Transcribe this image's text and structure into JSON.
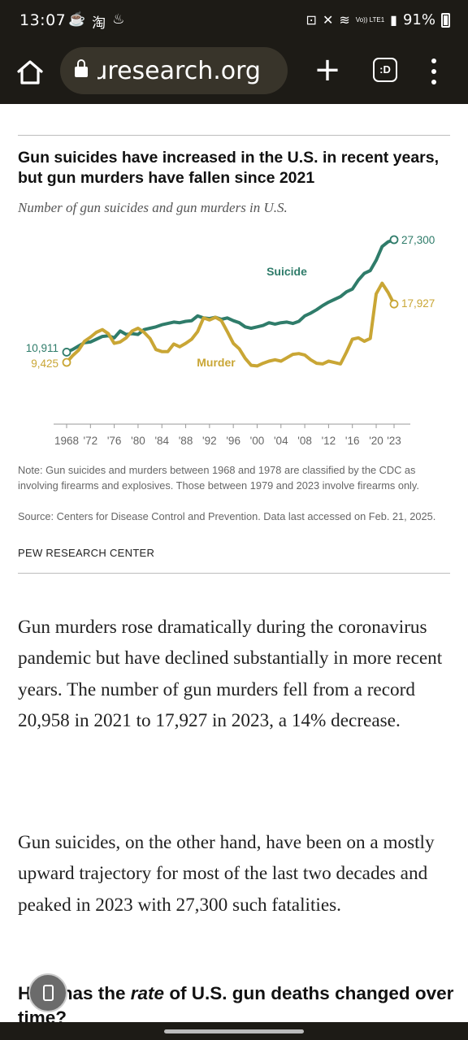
{
  "status_bar": {
    "time": "13:07",
    "left_icons": [
      "tea-cup-icon",
      "taobao-icon",
      "alipay-icon"
    ],
    "right_icons": [
      "nfc-icon",
      "mute-icon",
      "wifi-icon",
      "volte-icon",
      "signal-icon"
    ],
    "lte_label": "Vo)) LTE1",
    "battery": "91%"
  },
  "browser": {
    "url": "ɹresearch.org",
    "plus": "+",
    "tabs_label": ":D"
  },
  "chart": {
    "title": "Gun suicides have increased in the U.S. in recent years, but gun murders have fallen since 2021",
    "subtitle": "Number of gun suicides and gun murders in U.S.",
    "note": "Note: Gun suicides and murders between 1968 and 1978 are classified by the CDC as involving firearms and explosives. Those between 1979 and 2023 involve firearms only.",
    "source": "Source: Centers for Disease Control and Prevention. Data last accessed on Feb. 21, 2025.",
    "brand": "PEW RESEARCH CENTER"
  },
  "chart_data": {
    "type": "line",
    "title": "Gun suicides have increased in the U.S. in recent years, but gun murders have fallen since 2021",
    "subtitle": "Number of gun suicides and gun murders in U.S.",
    "xlabel": "",
    "ylabel": "",
    "x_ticks": [
      "1968",
      "'72",
      "'76",
      "'80",
      "'84",
      "'88",
      "'92",
      "'96",
      "'00",
      "'04",
      "'08",
      "'12",
      "'16",
      "'20",
      "'23"
    ],
    "x_range": [
      1968,
      2023
    ],
    "ylim": [
      0,
      28000
    ],
    "grid": false,
    "series": [
      {
        "name": "Suicide",
        "color": "#2f7c6a",
        "start_label": "10,911",
        "end_label": "27,300",
        "points": [
          [
            1968,
            10911
          ],
          [
            1969,
            11300
          ],
          [
            1970,
            11800
          ],
          [
            1971,
            12300
          ],
          [
            1972,
            12400
          ],
          [
            1973,
            12800
          ],
          [
            1974,
            13200
          ],
          [
            1975,
            13300
          ],
          [
            1976,
            13000
          ],
          [
            1977,
            14000
          ],
          [
            1978,
            13500
          ],
          [
            1979,
            13600
          ],
          [
            1980,
            13500
          ],
          [
            1981,
            14200
          ],
          [
            1982,
            14400
          ],
          [
            1983,
            14600
          ],
          [
            1984,
            14900
          ],
          [
            1985,
            15100
          ],
          [
            1986,
            15300
          ],
          [
            1987,
            15200
          ],
          [
            1988,
            15400
          ],
          [
            1989,
            15500
          ],
          [
            1990,
            16200
          ],
          [
            1991,
            15900
          ],
          [
            1992,
            15800
          ],
          [
            1993,
            16000
          ],
          [
            1994,
            15700
          ],
          [
            1995,
            15900
          ],
          [
            1996,
            15500
          ],
          [
            1997,
            15200
          ],
          [
            1998,
            14600
          ],
          [
            1999,
            14400
          ],
          [
            2000,
            14600
          ],
          [
            2001,
            14800
          ],
          [
            2002,
            15200
          ],
          [
            2003,
            15000
          ],
          [
            2004,
            15200
          ],
          [
            2005,
            15300
          ],
          [
            2006,
            15100
          ],
          [
            2007,
            15400
          ],
          [
            2008,
            16200
          ],
          [
            2009,
            16600
          ],
          [
            2010,
            17100
          ],
          [
            2011,
            17700
          ],
          [
            2012,
            18200
          ],
          [
            2013,
            18600
          ],
          [
            2014,
            19000
          ],
          [
            2015,
            19700
          ],
          [
            2016,
            20100
          ],
          [
            2017,
            21400
          ],
          [
            2018,
            22400
          ],
          [
            2019,
            22800
          ],
          [
            2020,
            24300
          ],
          [
            2021,
            26300
          ],
          [
            2022,
            26993
          ],
          [
            2023,
            27300
          ]
        ]
      },
      {
        "name": "Murder",
        "color": "#c9a635",
        "start_label": "9,425",
        "end_label": "17,927",
        "points": [
          [
            1968,
            9425
          ],
          [
            1969,
            10400
          ],
          [
            1970,
            11200
          ],
          [
            1971,
            12500
          ],
          [
            1972,
            13100
          ],
          [
            1973,
            13800
          ],
          [
            1974,
            14200
          ],
          [
            1975,
            13600
          ],
          [
            1976,
            12200
          ],
          [
            1977,
            12400
          ],
          [
            1978,
            13000
          ],
          [
            1979,
            14000
          ],
          [
            1980,
            14400
          ],
          [
            1981,
            13800
          ],
          [
            1982,
            12900
          ],
          [
            1983,
            11300
          ],
          [
            1984,
            11000
          ],
          [
            1985,
            11000
          ],
          [
            1986,
            12100
          ],
          [
            1987,
            11700
          ],
          [
            1988,
            12200
          ],
          [
            1989,
            12800
          ],
          [
            1990,
            13900
          ],
          [
            1991,
            15900
          ],
          [
            1992,
            15600
          ],
          [
            1993,
            16000
          ],
          [
            1994,
            15500
          ],
          [
            1995,
            13900
          ],
          [
            1996,
            12200
          ],
          [
            1997,
            11400
          ],
          [
            1998,
            10000
          ],
          [
            1999,
            9000
          ],
          [
            2000,
            8900
          ],
          [
            2001,
            9300
          ],
          [
            2002,
            9600
          ],
          [
            2003,
            9800
          ],
          [
            2004,
            9600
          ],
          [
            2005,
            10100
          ],
          [
            2006,
            10600
          ],
          [
            2007,
            10700
          ],
          [
            2008,
            10500
          ],
          [
            2009,
            9800
          ],
          [
            2010,
            9300
          ],
          [
            2011,
            9200
          ],
          [
            2012,
            9600
          ],
          [
            2013,
            9400
          ],
          [
            2014,
            9200
          ],
          [
            2015,
            10900
          ],
          [
            2016,
            12800
          ],
          [
            2017,
            13000
          ],
          [
            2018,
            12500
          ],
          [
            2019,
            12900
          ],
          [
            2020,
            19400
          ],
          [
            2021,
            20958
          ],
          [
            2022,
            19600
          ],
          [
            2023,
            17927
          ]
        ]
      }
    ],
    "legend": "direct labels on lines"
  },
  "article": {
    "p1": "Gun murders rose dramatically during the coronavirus pandemic but have declined substantially in more recent years. The number of gun murders fell from a record 20,958 in 2021 to 17,927 in 2023, a 14% decrease.",
    "p2": "Gun suicides, on the other hand, have been on a mostly upward trajectory for most of the last two decades and peaked in 2023 with 27,300 such fatalities.",
    "heading_pre": "How has the ",
    "heading_em": "rate",
    "heading_post": " of U.S. gun deaths changed over time?"
  }
}
